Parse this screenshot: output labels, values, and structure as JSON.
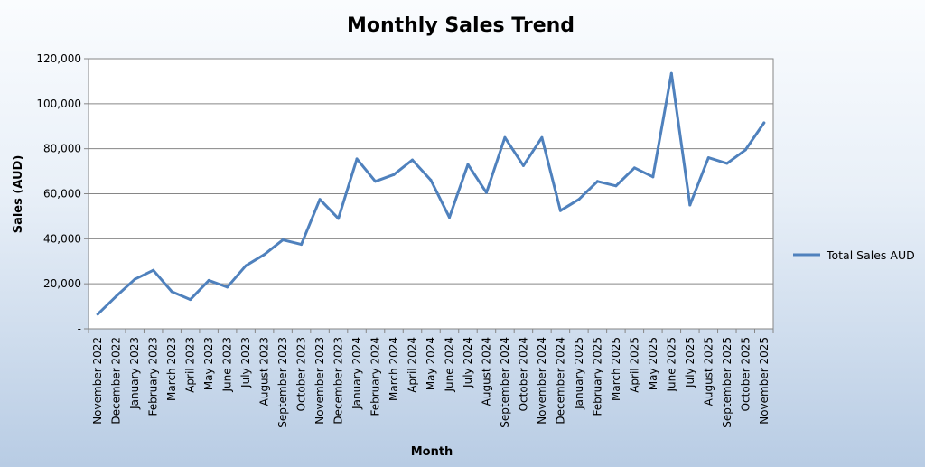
{
  "chart_data": {
    "type": "line",
    "title": "Monthly Sales Trend",
    "xlabel": "Month",
    "ylabel": "Sales (AUD)",
    "ylim": [
      0,
      120000
    ],
    "yticks": [
      "-",
      "20,000",
      "40,000",
      "60,000",
      "80,000",
      "100,000",
      "120,000"
    ],
    "ytick_values": [
      0,
      20000,
      40000,
      60000,
      80000,
      100000,
      120000
    ],
    "grid": true,
    "legend_position": "right",
    "categories": [
      "November 2022",
      "December 2022",
      "January 2023",
      "February 2023",
      "March 2023",
      "April 2023",
      "May 2023",
      "June 2023",
      "July 2023",
      "August 2023",
      "September 2023",
      "October 2023",
      "November 2023",
      "December 2023",
      "January 2024",
      "February 2024",
      "March 2024",
      "April 2024",
      "May 2024",
      "June 2024",
      "July 2024",
      "August 2024",
      "September 2024",
      "October 2024",
      "November 2024",
      "December 2024",
      "January 2025",
      "February 2025",
      "March 2025",
      "April 2025",
      "May 2025",
      "June 2025",
      "July 2025",
      "August 2025",
      "September 2025",
      "October 2025",
      "November 2025"
    ],
    "series": [
      {
        "name": "Total Sales AUD",
        "color": "#4f81bd",
        "values": [
          6500,
          14500,
          22000,
          26000,
          16500,
          13000,
          21500,
          18500,
          28000,
          33000,
          39500,
          37500,
          57500,
          49000,
          75500,
          65500,
          68500,
          75000,
          66000,
          49500,
          73000,
          60500,
          85000,
          72500,
          85000,
          52500,
          57500,
          65500,
          63500,
          71500,
          67500,
          113500,
          55000,
          76000,
          73500,
          79500,
          91500
        ]
      }
    ]
  },
  "colors": {
    "plot_background": "#ffffff",
    "gridline": "#868686",
    "series": "#4f81bd"
  }
}
